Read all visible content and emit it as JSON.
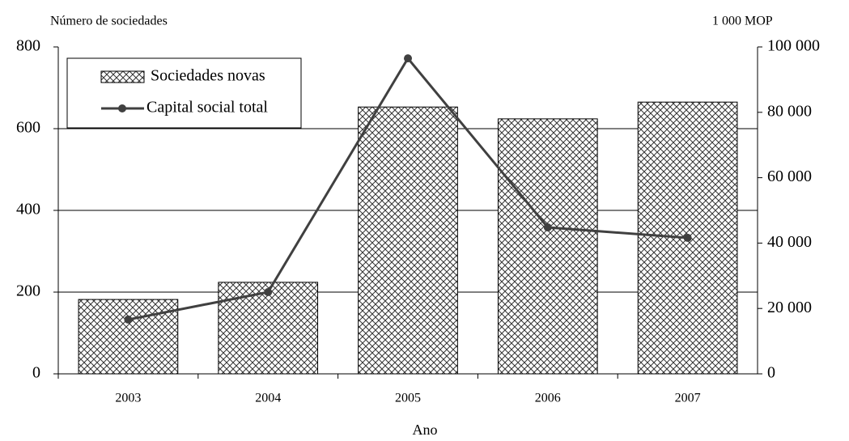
{
  "chart_data": {
    "type": "bar",
    "y_label": "Número de sociedades",
    "y2_label": "1 000 MOP",
    "x_label": "Ano",
    "categories": [
      "2003",
      "2004",
      "2005",
      "2006",
      "2007"
    ],
    "series": [
      {
        "name": "Sociedades novas",
        "type": "bar",
        "color": "#333333",
        "values": [
          182,
          224,
          653,
          624,
          665
        ]
      },
      {
        "name": "Capital social total",
        "type": "line",
        "axis": "y2",
        "color": "#404040",
        "values": [
          16600,
          25000,
          96500,
          44800,
          41600
        ]
      }
    ],
    "ylim": [
      0,
      800
    ],
    "yticks": [
      0,
      200,
      400,
      600,
      800
    ],
    "y2lim": [
      0,
      100000
    ],
    "y2ticks": [
      0,
      {
        "value": 20000,
        "label": "20 000"
      },
      {
        "value": 40000,
        "label": "40 000"
      },
      {
        "value": 60000,
        "label": "60 000"
      },
      {
        "value": 80000,
        "label": "80 000"
      },
      {
        "value": 100000,
        "label": "100 000"
      }
    ],
    "grid": true,
    "legend": "top-left"
  }
}
